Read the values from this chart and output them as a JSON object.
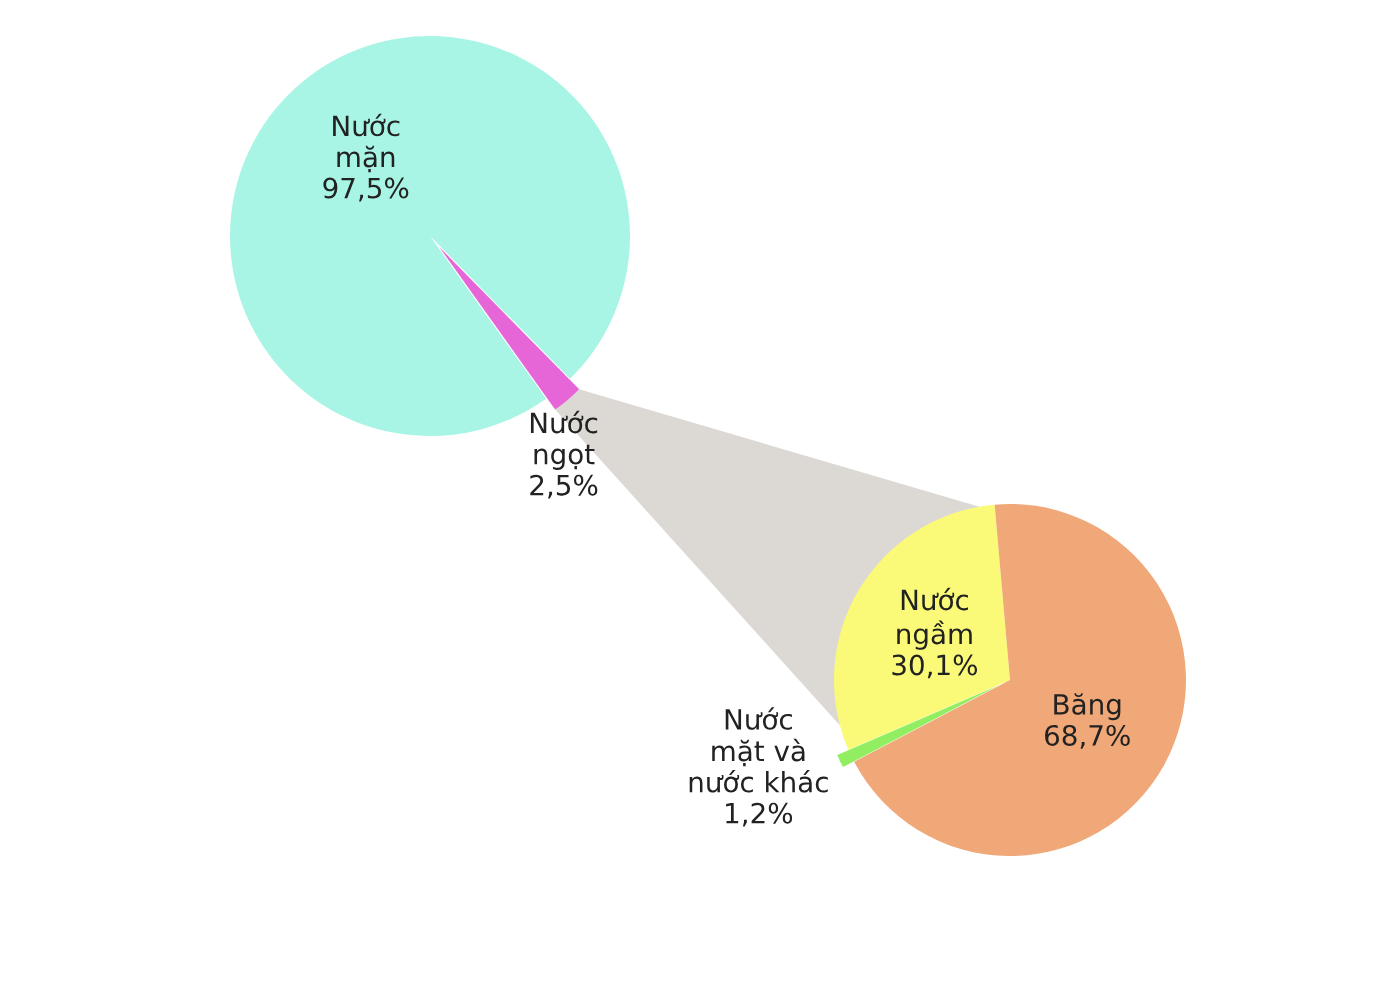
{
  "chart_data": [
    {
      "type": "pie",
      "categories": [
        "Nước\nmặn",
        "Nước\nngọt"
      ],
      "values": [
        97.5,
        2.5
      ],
      "value_labels": [
        "97,5%",
        "2,5%"
      ],
      "colors": [
        "#a8f5e6",
        "#e666d8"
      ]
    },
    {
      "type": "pie",
      "categories": [
        "Nước\nngầm",
        "Nước\nmặt và\nnước khác",
        "Băng"
      ],
      "values": [
        30.1,
        1.2,
        68.7
      ],
      "value_labels": [
        "30,1%",
        "1,2%",
        "68,7%"
      ],
      "colors": [
        "#fafa78",
        "#90ee60",
        "#f0a878"
      ]
    }
  ]
}
